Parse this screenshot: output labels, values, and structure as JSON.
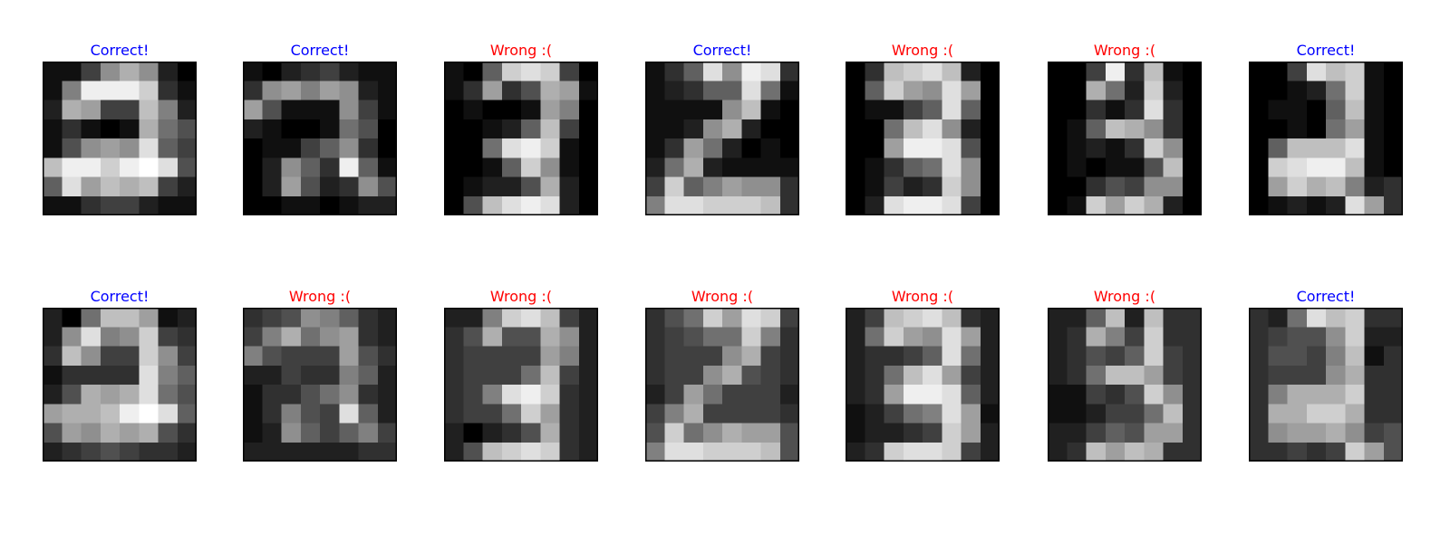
{
  "colors": {
    "correct": "#0000ff",
    "wrong": "#ff0000",
    "frame": "#000000"
  },
  "chart_data": {
    "type": "heatmap",
    "grid_size": [
      8,
      8
    ],
    "colormap": "gray",
    "value_range": [
      0,
      16
    ],
    "panels": [
      {
        "title": "Correct!",
        "status": "correct",
        "pixels": [
          [
            1,
            1,
            4,
            9,
            11,
            9,
            2,
            0
          ],
          [
            1,
            8,
            15,
            15,
            15,
            13,
            3,
            1
          ],
          [
            2,
            11,
            10,
            4,
            4,
            12,
            8,
            2
          ],
          [
            1,
            3,
            1,
            0,
            1,
            11,
            7,
            5
          ],
          [
            1,
            5,
            9,
            10,
            9,
            14,
            6,
            4
          ],
          [
            12,
            15,
            15,
            13,
            15,
            16,
            14,
            5
          ],
          [
            6,
            14,
            10,
            12,
            11,
            12,
            4,
            2
          ],
          [
            1,
            1,
            3,
            4,
            4,
            2,
            1,
            1
          ]
        ]
      },
      {
        "title": "Correct!",
        "status": "correct",
        "pixels": [
          [
            1,
            0,
            2,
            3,
            4,
            2,
            1,
            1
          ],
          [
            3,
            9,
            10,
            8,
            10,
            9,
            2,
            1
          ],
          [
            10,
            5,
            1,
            1,
            1,
            9,
            4,
            1
          ],
          [
            2,
            1,
            0,
            0,
            1,
            7,
            5,
            0
          ],
          [
            0,
            1,
            1,
            4,
            6,
            9,
            3,
            0
          ],
          [
            0,
            2,
            9,
            6,
            3,
            15,
            6,
            1
          ],
          [
            0,
            2,
            10,
            5,
            2,
            3,
            9,
            5
          ],
          [
            0,
            0,
            1,
            1,
            0,
            1,
            2,
            2
          ]
        ]
      },
      {
        "title": "Wrong :(",
        "status": "wrong",
        "pixels": [
          [
            1,
            0,
            6,
            13,
            14,
            13,
            4,
            0
          ],
          [
            1,
            3,
            10,
            3,
            5,
            11,
            10,
            1
          ],
          [
            0,
            1,
            0,
            0,
            1,
            10,
            8,
            0
          ],
          [
            0,
            0,
            1,
            2,
            6,
            12,
            4,
            0
          ],
          [
            0,
            0,
            7,
            14,
            15,
            13,
            1,
            0
          ],
          [
            0,
            0,
            1,
            6,
            13,
            9,
            1,
            0
          ],
          [
            0,
            1,
            2,
            2,
            5,
            11,
            2,
            0
          ],
          [
            0,
            5,
            12,
            14,
            15,
            14,
            2,
            0
          ]
        ]
      },
      {
        "title": "Correct!",
        "status": "correct",
        "pixels": [
          [
            1,
            3,
            6,
            14,
            9,
            15,
            14,
            3
          ],
          [
            1,
            2,
            3,
            6,
            6,
            14,
            7,
            1
          ],
          [
            1,
            1,
            1,
            1,
            9,
            12,
            1,
            0
          ],
          [
            1,
            1,
            2,
            9,
            11,
            2,
            0,
            0
          ],
          [
            1,
            3,
            10,
            7,
            2,
            0,
            1,
            0
          ],
          [
            2,
            7,
            11,
            2,
            1,
            1,
            1,
            1
          ],
          [
            4,
            13,
            6,
            8,
            10,
            9,
            9,
            3
          ],
          [
            8,
            14,
            14,
            13,
            13,
            13,
            12,
            3
          ]
        ]
      },
      {
        "title": "Wrong :(",
        "status": "wrong",
        "pixels": [
          [
            0,
            3,
            12,
            13,
            14,
            12,
            2,
            0
          ],
          [
            0,
            6,
            13,
            10,
            9,
            14,
            10,
            0
          ],
          [
            0,
            1,
            1,
            4,
            6,
            14,
            6,
            0
          ],
          [
            0,
            0,
            7,
            12,
            14,
            9,
            2,
            0
          ],
          [
            0,
            0,
            10,
            15,
            15,
            14,
            5,
            0
          ],
          [
            0,
            1,
            3,
            6,
            7,
            14,
            9,
            0
          ],
          [
            0,
            1,
            4,
            2,
            3,
            13,
            9,
            0
          ],
          [
            0,
            2,
            14,
            15,
            15,
            14,
            4,
            0
          ]
        ]
      },
      {
        "title": "Wrong :(",
        "status": "wrong",
        "pixels": [
          [
            0,
            0,
            4,
            15,
            3,
            12,
            1,
            0
          ],
          [
            0,
            0,
            11,
            7,
            2,
            13,
            2,
            0
          ],
          [
            0,
            0,
            3,
            1,
            3,
            14,
            3,
            0
          ],
          [
            0,
            1,
            6,
            12,
            11,
            9,
            3,
            0
          ],
          [
            0,
            1,
            2,
            1,
            3,
            13,
            9,
            0
          ],
          [
            0,
            1,
            0,
            1,
            1,
            5,
            12,
            0
          ],
          [
            0,
            0,
            3,
            5,
            4,
            9,
            9,
            0
          ],
          [
            0,
            1,
            13,
            10,
            13,
            11,
            2,
            0
          ]
        ]
      },
      {
        "title": "Correct!",
        "status": "correct",
        "pixels": [
          [
            0,
            0,
            4,
            14,
            12,
            13,
            1,
            0
          ],
          [
            0,
            0,
            1,
            2,
            7,
            13,
            1,
            0
          ],
          [
            0,
            1,
            1,
            0,
            6,
            12,
            1,
            0
          ],
          [
            0,
            0,
            1,
            0,
            7,
            10,
            1,
            0
          ],
          [
            0,
            6,
            12,
            12,
            12,
            14,
            1,
            0
          ],
          [
            0,
            13,
            14,
            15,
            15,
            12,
            1,
            0
          ],
          [
            0,
            10,
            13,
            11,
            12,
            8,
            2,
            3
          ],
          [
            0,
            1,
            2,
            1,
            2,
            14,
            10,
            3
          ]
        ]
      },
      {
        "title": "Correct!",
        "status": "correct",
        "pixels": [
          [
            2,
            0,
            7,
            12,
            12,
            10,
            1,
            2
          ],
          [
            2,
            9,
            14,
            8,
            9,
            13,
            4,
            3
          ],
          [
            3,
            12,
            9,
            4,
            4,
            13,
            9,
            4
          ],
          [
            1,
            3,
            3,
            3,
            3,
            14,
            8,
            6
          ],
          [
            2,
            5,
            11,
            10,
            11,
            14,
            7,
            5
          ],
          [
            10,
            11,
            11,
            12,
            15,
            16,
            14,
            6
          ],
          [
            5,
            10,
            9,
            11,
            10,
            11,
            5,
            3
          ],
          [
            2,
            3,
            4,
            5,
            4,
            3,
            3,
            2
          ]
        ]
      },
      {
        "title": "Wrong :(",
        "status": "wrong",
        "pixels": [
          [
            3,
            4,
            5,
            9,
            8,
            6,
            3,
            2
          ],
          [
            4,
            8,
            11,
            7,
            9,
            10,
            3,
            2
          ],
          [
            8,
            5,
            4,
            4,
            4,
            10,
            5,
            3
          ],
          [
            2,
            2,
            4,
            3,
            3,
            8,
            6,
            2
          ],
          [
            1,
            3,
            3,
            5,
            7,
            9,
            3,
            2
          ],
          [
            1,
            3,
            8,
            5,
            4,
            14,
            6,
            2
          ],
          [
            1,
            2,
            9,
            6,
            4,
            6,
            8,
            4
          ],
          [
            2,
            2,
            2,
            2,
            2,
            2,
            3,
            3
          ]
        ]
      },
      {
        "title": "Wrong :(",
        "status": "wrong",
        "pixels": [
          [
            2,
            2,
            8,
            13,
            14,
            12,
            4,
            2
          ],
          [
            3,
            5,
            11,
            5,
            5,
            11,
            9,
            2
          ],
          [
            3,
            4,
            4,
            4,
            4,
            10,
            8,
            2
          ],
          [
            3,
            4,
            4,
            4,
            7,
            12,
            4,
            2
          ],
          [
            3,
            4,
            8,
            14,
            15,
            13,
            3,
            2
          ],
          [
            3,
            4,
            4,
            7,
            13,
            10,
            3,
            2
          ],
          [
            2,
            0,
            2,
            3,
            5,
            11,
            3,
            2
          ],
          [
            2,
            5,
            12,
            13,
            14,
            13,
            3,
            2
          ]
        ]
      },
      {
        "title": "Wrong :(",
        "status": "wrong",
        "pixels": [
          [
            3,
            5,
            7,
            13,
            10,
            14,
            13,
            4
          ],
          [
            3,
            4,
            5,
            7,
            7,
            13,
            8,
            3
          ],
          [
            3,
            4,
            4,
            4,
            9,
            11,
            4,
            3
          ],
          [
            3,
            4,
            4,
            9,
            11,
            5,
            4,
            3
          ],
          [
            2,
            4,
            10,
            7,
            4,
            4,
            4,
            2
          ],
          [
            4,
            8,
            11,
            4,
            4,
            4,
            4,
            3
          ],
          [
            5,
            13,
            7,
            9,
            11,
            10,
            10,
            5
          ],
          [
            8,
            14,
            14,
            13,
            13,
            13,
            12,
            5
          ]
        ]
      },
      {
        "title": "Wrong :(",
        "status": "wrong",
        "pixels": [
          [
            2,
            4,
            12,
            13,
            14,
            12,
            3,
            2
          ],
          [
            2,
            7,
            13,
            10,
            9,
            14,
            10,
            2
          ],
          [
            2,
            3,
            3,
            4,
            6,
            14,
            7,
            2
          ],
          [
            2,
            3,
            7,
            12,
            14,
            10,
            4,
            2
          ],
          [
            2,
            3,
            10,
            15,
            15,
            14,
            6,
            2
          ],
          [
            1,
            2,
            4,
            7,
            8,
            14,
            10,
            1
          ],
          [
            1,
            2,
            2,
            3,
            4,
            13,
            10,
            2
          ],
          [
            2,
            3,
            13,
            14,
            14,
            13,
            4,
            2
          ]
        ]
      },
      {
        "title": "Wrong :(",
        "status": "wrong",
        "pixels": [
          [
            2,
            2,
            6,
            12,
            2,
            12,
            3,
            3
          ],
          [
            2,
            3,
            11,
            8,
            4,
            13,
            3,
            3
          ],
          [
            2,
            3,
            5,
            4,
            6,
            13,
            4,
            3
          ],
          [
            2,
            3,
            7,
            12,
            12,
            10,
            4,
            3
          ],
          [
            1,
            1,
            4,
            3,
            5,
            13,
            9,
            3
          ],
          [
            1,
            1,
            2,
            4,
            4,
            7,
            12,
            3
          ],
          [
            2,
            2,
            4,
            6,
            5,
            10,
            10,
            3
          ],
          [
            2,
            3,
            12,
            10,
            12,
            11,
            3,
            3
          ]
        ]
      },
      {
        "title": "Correct!",
        "status": "correct",
        "pixels": [
          [
            3,
            2,
            7,
            14,
            12,
            13,
            3,
            3
          ],
          [
            3,
            4,
            5,
            5,
            9,
            13,
            2,
            2
          ],
          [
            3,
            5,
            5,
            4,
            8,
            12,
            1,
            3
          ],
          [
            3,
            4,
            4,
            4,
            9,
            11,
            3,
            3
          ],
          [
            3,
            8,
            11,
            11,
            11,
            13,
            3,
            3
          ],
          [
            3,
            11,
            11,
            13,
            13,
            11,
            3,
            3
          ],
          [
            3,
            9,
            10,
            10,
            11,
            9,
            4,
            5
          ],
          [
            3,
            3,
            4,
            3,
            4,
            13,
            10,
            5
          ]
        ]
      }
    ]
  }
}
